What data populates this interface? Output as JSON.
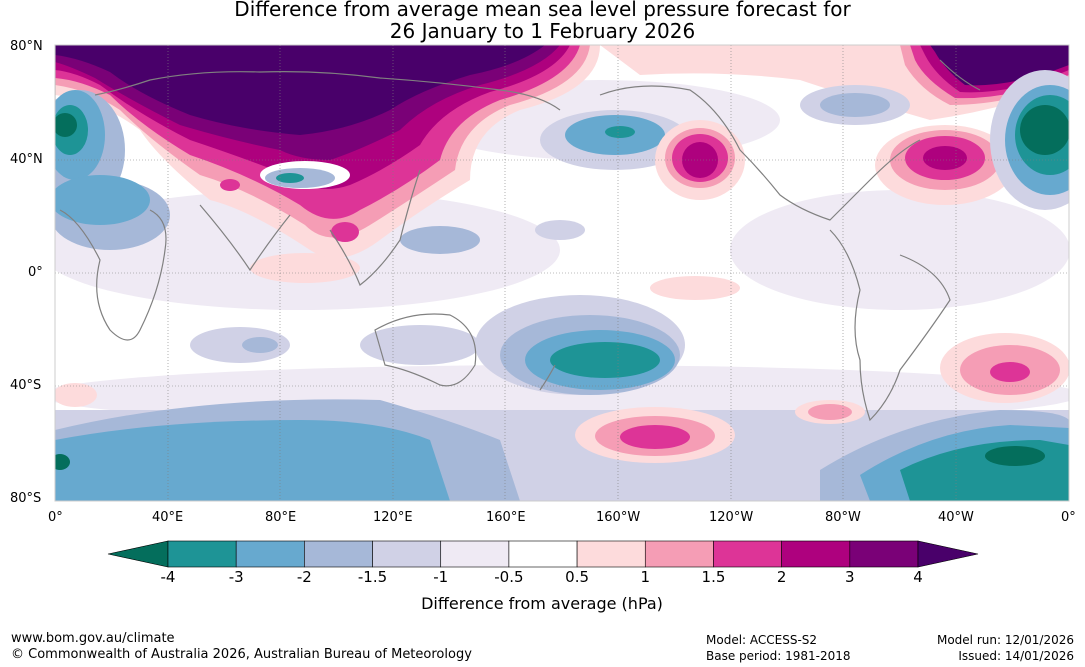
{
  "title_line1": "Difference from average mean sea level pressure forecast for",
  "title_line2": "26 January to 1 February 2026",
  "lat_labels": [
    "80°N",
    "40°N",
    "0°",
    "40°S",
    "80°S"
  ],
  "lon_labels": [
    "0°",
    "40°E",
    "80°E",
    "120°E",
    "160°E",
    "160°W",
    "120°W",
    "80°W",
    "40°W",
    "0°"
  ],
  "colorbar": {
    "ticks": [
      "-4",
      "-3",
      "-2",
      "-1.5",
      "-1",
      "-0.5",
      "0.5",
      "1",
      "1.5",
      "2",
      "3",
      "4"
    ],
    "colors": [
      "#046e5c",
      "#1e9496",
      "#67a9cf",
      "#a6b8d8",
      "#d0d1e6",
      "#efeaf4",
      "#ffffff",
      "#fddbdc",
      "#f59db5",
      "#dd3497",
      "#ae017e",
      "#7a0177",
      "#49006a"
    ],
    "label": "Difference from average (hPa)"
  },
  "footer": {
    "website": "www.bom.gov.au/climate",
    "copyright": "© Commonwealth of Australia 2026, Australian Bureau of Meteorology",
    "model": "Model: ACCESS-S2",
    "base_period": "Base period: 1981-2018",
    "model_run": "Model run: 12/01/2026",
    "issued": "Issued: 14/01/2026"
  }
}
